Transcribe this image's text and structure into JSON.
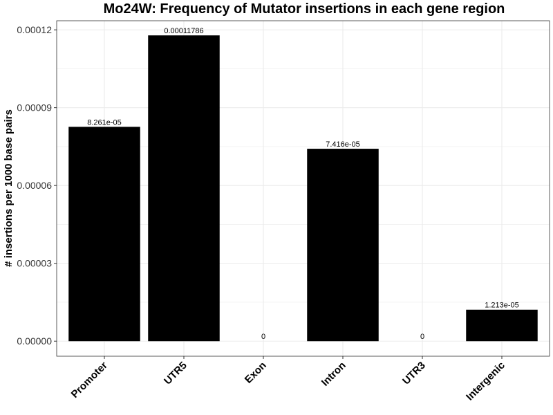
{
  "chart_data": {
    "type": "bar",
    "title": "Mo24W: Frequency of Mutator insertions in each gene region",
    "xlabel": "",
    "ylabel": "# insertions per 1000 base pairs",
    "categories": [
      "Promoter",
      "UTR5",
      "Exon",
      "Intron",
      "UTR3",
      "Intergenic"
    ],
    "values": [
      8.261e-05,
      0.00011786,
      0,
      7.416e-05,
      0,
      1.213e-05
    ],
    "data_labels": [
      "8.261e-05",
      "0.00011786",
      "0",
      "7.416e-05",
      "0",
      "1.213e-05"
    ],
    "y_ticks": [
      0,
      3e-05,
      6e-05,
      9e-05,
      0.00012
    ],
    "y_tick_labels": [
      "0.00000",
      "0.00003",
      "0.00006",
      "0.00009",
      "0.00012"
    ],
    "ylim": [
      -5.8e-06,
      0.0001235
    ],
    "grid": true,
    "bar_color": "#000000",
    "grid_color": "#ebebeb"
  }
}
